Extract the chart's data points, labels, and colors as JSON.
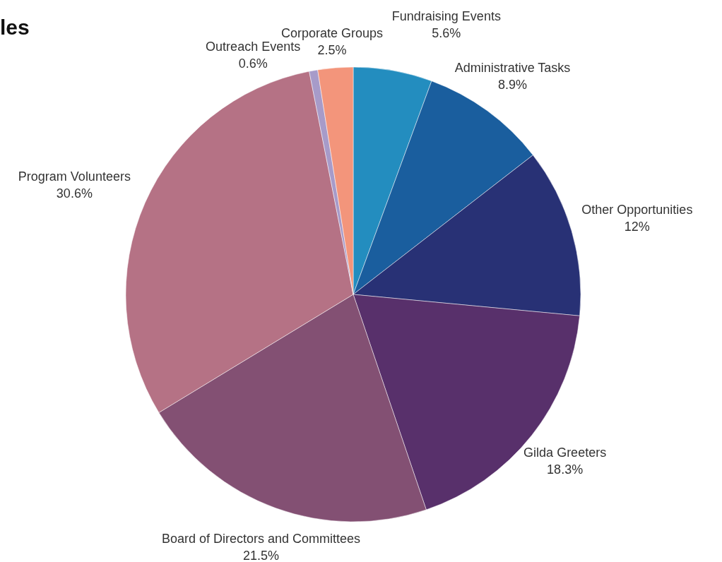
{
  "chart_data": {
    "type": "pie",
    "title": "les",
    "categories": [
      "Fundraising Events",
      "Administrative Tasks",
      "Other Opportunities",
      "Gilda Greeters",
      "Board of Directors and Committees",
      "Program Volunteers",
      "Outreach Events",
      "Corporate Groups"
    ],
    "values": [
      5.6,
      8.9,
      12,
      18.3,
      21.5,
      30.6,
      0.6,
      2.5
    ],
    "value_labels": [
      "5.6%",
      "8.9%",
      "12%",
      "18.3%",
      "21.5%",
      "30.6%",
      "0.6%",
      "2.5%"
    ],
    "colors": [
      "#238dbf",
      "#1a5e9e",
      "#283175",
      "#58306b",
      "#835073",
      "#b57285",
      "#a79bc9",
      "#f3957b"
    ],
    "legend": false
  }
}
